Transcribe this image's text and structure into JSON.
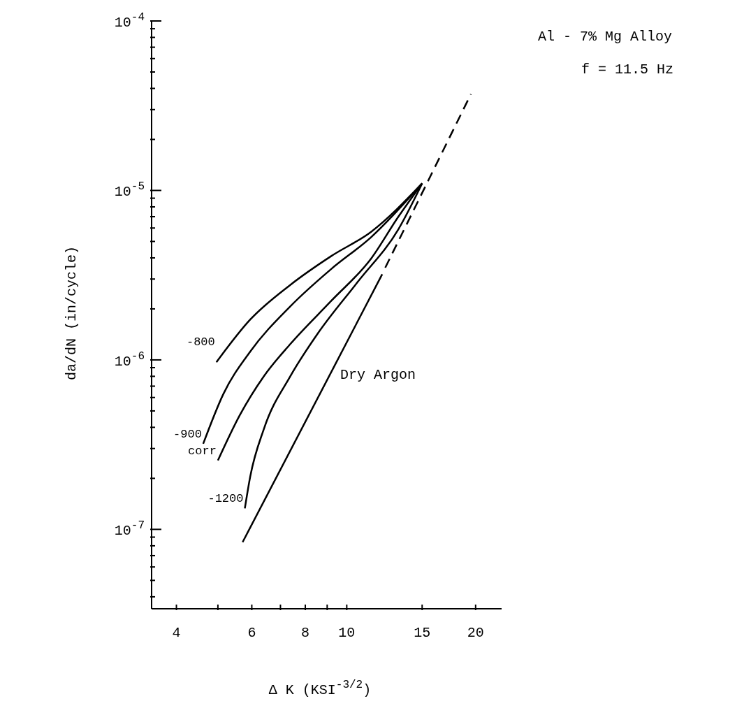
{
  "chart_data": {
    "type": "line",
    "title": "Al - 7% Mg Alloy",
    "subtitle": "f = 11.5 Hz",
    "xlabel": "Δ K (KSI$^{-3/2}$)",
    "ylabel": "da/dN (in/cycle)",
    "log": "xy",
    "grid": false,
    "marker": "none",
    "xlim": [
      3.5,
      23
    ],
    "ylim": [
      3.4e-08,
      0.0001
    ],
    "xticks": [
      4,
      {
        "value": 5,
        "label": null
      },
      6,
      {
        "value": 7,
        "label": null
      },
      8,
      {
        "value": 9,
        "label": null
      },
      10,
      15,
      20
    ],
    "yticks": [
      {
        "value": 4e-08,
        "label": null
      },
      {
        "value": 5e-08,
        "label": null
      },
      {
        "value": 6e-08,
        "label": null
      },
      {
        "value": 7e-08,
        "label": null
      },
      {
        "value": 8e-08,
        "label": null
      },
      {
        "value": 9e-08,
        "label": null
      },
      {
        "value": 1e-07,
        "label": "10$^{-7}$"
      },
      {
        "value": 2e-07,
        "label": null
      },
      {
        "value": 3e-07,
        "label": null
      },
      {
        "value": 4e-07,
        "label": null
      },
      {
        "value": 5e-07,
        "label": null
      },
      {
        "value": 6e-07,
        "label": null
      },
      {
        "value": 7e-07,
        "label": null
      },
      {
        "value": 8e-07,
        "label": null
      },
      {
        "value": 9e-07,
        "label": null
      },
      {
        "value": 1e-06,
        "label": "10$^{-6}$"
      },
      {
        "value": 2e-06,
        "label": null
      },
      {
        "value": 3e-06,
        "label": null
      },
      {
        "value": 4e-06,
        "label": null
      },
      {
        "value": 5e-06,
        "label": null
      },
      {
        "value": 6e-06,
        "label": null
      },
      {
        "value": 7e-06,
        "label": null
      },
      {
        "value": 8e-06,
        "label": null
      },
      {
        "value": 9e-06,
        "label": null
      },
      {
        "value": 1e-05,
        "label": "10$^{-5}$"
      },
      {
        "value": 2e-05,
        "label": null
      },
      {
        "value": 3e-05,
        "label": null
      },
      {
        "value": 4e-05,
        "label": null
      },
      {
        "value": 5e-05,
        "label": null
      },
      {
        "value": 6e-05,
        "label": null
      },
      {
        "value": 7e-05,
        "label": null
      },
      {
        "value": 8e-05,
        "label": null
      },
      {
        "value": 9e-05,
        "label": null
      },
      {
        "value": 0.0001,
        "label": "10$^{-4}$"
      }
    ],
    "series": [
      {
        "name": "-800",
        "color": "#000000",
        "line_style": "solid",
        "x": [
          4.96,
          5.95,
          7.38,
          9.2,
          11.4,
          15
        ],
        "values": [
          9.7e-07,
          1.73e-06,
          2.77e-06,
          4.1e-06,
          5.7e-06,
          1.1e-05
        ]
      },
      {
        "name": "-900",
        "color": "#000000",
        "line_style": "solid",
        "x": [
          4.62,
          5.15,
          5.95,
          7.38,
          9.2,
          11.4,
          15
        ],
        "values": [
          3.2e-07,
          6.3e-07,
          1.12e-06,
          2.07e-06,
          3.44e-06,
          5.3e-06,
          1.1e-05
        ]
      },
      {
        "name": "corr",
        "color": "#000000",
        "line_style": "solid",
        "x": [
          5.0,
          5.62,
          6.4,
          7.38,
          9.2,
          11.4,
          13.2,
          15
        ],
        "values": [
          2.55e-07,
          4.7e-07,
          8e-07,
          1.24e-06,
          2.23e-06,
          3.96e-06,
          7e-06,
          1.1e-05
        ]
      },
      {
        "name": "-1200",
        "color": "#000000",
        "line_style": "solid",
        "x": [
          5.78,
          5.95,
          6.4,
          7.38,
          8.57,
          10.6,
          13.2,
          15
        ],
        "values": [
          1.33e-07,
          2.05e-07,
          3.9e-07,
          8e-07,
          1.44e-06,
          2.88e-06,
          5.9e-06,
          1.1e-05
        ]
      },
      {
        "name": "Dry Argon",
        "color": "#000000",
        "line_style": "solid",
        "x": [
          5.71,
          12.1
        ],
        "values": [
          8.4e-08,
          3.2e-06
        ]
      },
      {
        "color": "#000000",
        "line_style": "dashed",
        "x": [
          12.3,
          19.5
        ],
        "values": [
          3.5e-06,
          3.7e-05
        ]
      }
    ]
  }
}
